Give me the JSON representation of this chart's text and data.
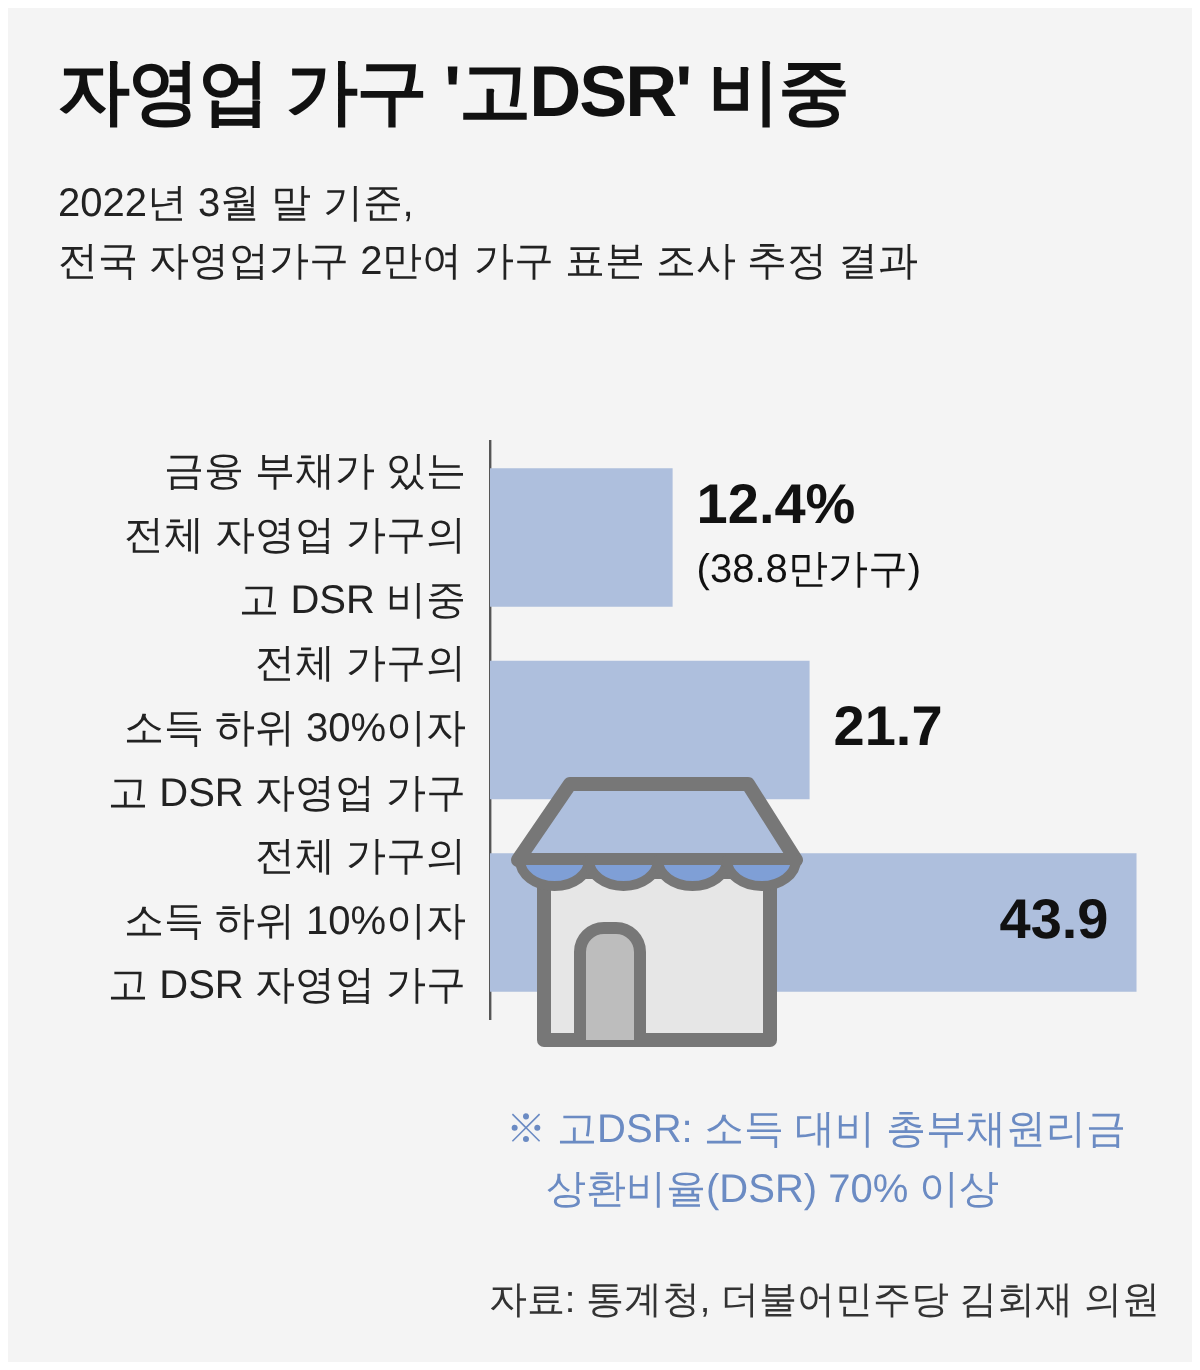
{
  "chart_data": {
    "type": "bar",
    "orientation": "horizontal",
    "title": "자영업 가구 '고DSR' 비중",
    "subtitle": "2022년 3월 말 기준,\n전국 자영업가구 2만여 가구 표본 조사 추정 결과",
    "categories": [
      "금융 부채가 있는\n전체 자영업 가구의\n고 DSR 비중",
      "전체 가구의\n소득 하위 30%이자\n고 DSR 자영업 가구",
      "전체 가구의\n소득 하위 10%이자\n고 DSR 자영업 가구"
    ],
    "values": [
      12.4,
      21.7,
      43.9
    ],
    "value_labels": [
      "12.4%\n(38.8만가구)",
      "21.7",
      "43.9"
    ],
    "color": "#aebfdd",
    "xlim": [
      0,
      44
    ],
    "tick_labels": "y",
    "grid": false,
    "legend": false,
    "annotations": [
      "※ 고DSR: 소득 대비 총부채원리금\n상환비율(DSR) 70% 이상",
      "자료: 통계청, 더불어민주당 김회재 의원"
    ]
  }
}
